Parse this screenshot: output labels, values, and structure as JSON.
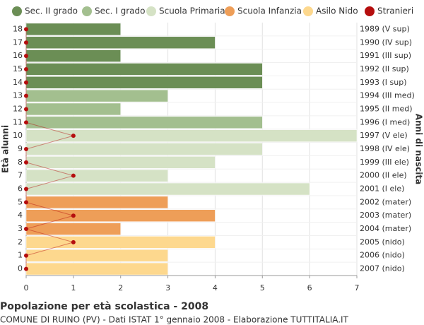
{
  "chart_data": {
    "type": "bar",
    "orientation": "horizontal",
    "title": "Popolazione per età scolastica - 2008",
    "subtitle": "COMUNE DI RUINO (PV) - Dati ISTAT 1° gennaio 2008 - Elaborazione TUTTITALIA.IT",
    "y_label": "Età alunni",
    "y2_label": "Anni di nascita",
    "categories": [
      "18",
      "17",
      "16",
      "15",
      "14",
      "13",
      "12",
      "11",
      "10",
      "9",
      "8",
      "7",
      "6",
      "5",
      "4",
      "3",
      "2",
      "1",
      "0"
    ],
    "birth_years": [
      "1989 (V sup)",
      "1990 (IV sup)",
      "1991 (III sup)",
      "1992 (II sup)",
      "1993 (I sup)",
      "1994 (III med)",
      "1995 (II med)",
      "1996 (I med)",
      "1997 (V ele)",
      "1998 (IV ele)",
      "1999 (III ele)",
      "2000 (II ele)",
      "2001 (I ele)",
      "2002 (mater)",
      "2003 (mater)",
      "2004 (mater)",
      "2005 (nido)",
      "2006 (nido)",
      "2007 (nido)"
    ],
    "series": [
      {
        "name": "Sec. II grado",
        "color": "#6b8e55",
        "values": [
          2,
          4,
          2,
          5,
          5,
          null,
          null,
          null,
          null,
          null,
          null,
          null,
          null,
          null,
          null,
          null,
          null,
          null,
          null
        ]
      },
      {
        "name": "Sec. I grado",
        "color": "#a3bf8f",
        "values": [
          null,
          null,
          null,
          null,
          null,
          3,
          2,
          5,
          null,
          null,
          null,
          null,
          null,
          null,
          null,
          null,
          null,
          null,
          null
        ]
      },
      {
        "name": "Scuola Primaria",
        "color": "#d5e2c5",
        "values": [
          null,
          null,
          null,
          null,
          null,
          null,
          null,
          null,
          7,
          5,
          4,
          3,
          6,
          null,
          null,
          null,
          null,
          null,
          null
        ]
      },
      {
        "name": "Scuola Infanzia",
        "color": "#ee9e58",
        "values": [
          null,
          null,
          null,
          null,
          null,
          null,
          null,
          null,
          null,
          null,
          null,
          null,
          null,
          3,
          4,
          2,
          null,
          null,
          null
        ]
      },
      {
        "name": "Asilo Nido",
        "color": "#fdd88e",
        "values": [
          null,
          null,
          null,
          null,
          null,
          null,
          null,
          null,
          null,
          null,
          null,
          null,
          null,
          null,
          null,
          null,
          4,
          3,
          3
        ]
      },
      {
        "name": "Stranieri",
        "color": "#b50e0e",
        "type": "line",
        "values": [
          0,
          0,
          0,
          0,
          0,
          0,
          0,
          0,
          1,
          0,
          0,
          1,
          0,
          0,
          1,
          0,
          1,
          0,
          0
        ]
      }
    ],
    "xlim": [
      0,
      7
    ],
    "xticks": [
      0,
      1,
      2,
      3,
      4,
      5,
      6,
      7
    ],
    "grid": true,
    "legend": "top"
  }
}
